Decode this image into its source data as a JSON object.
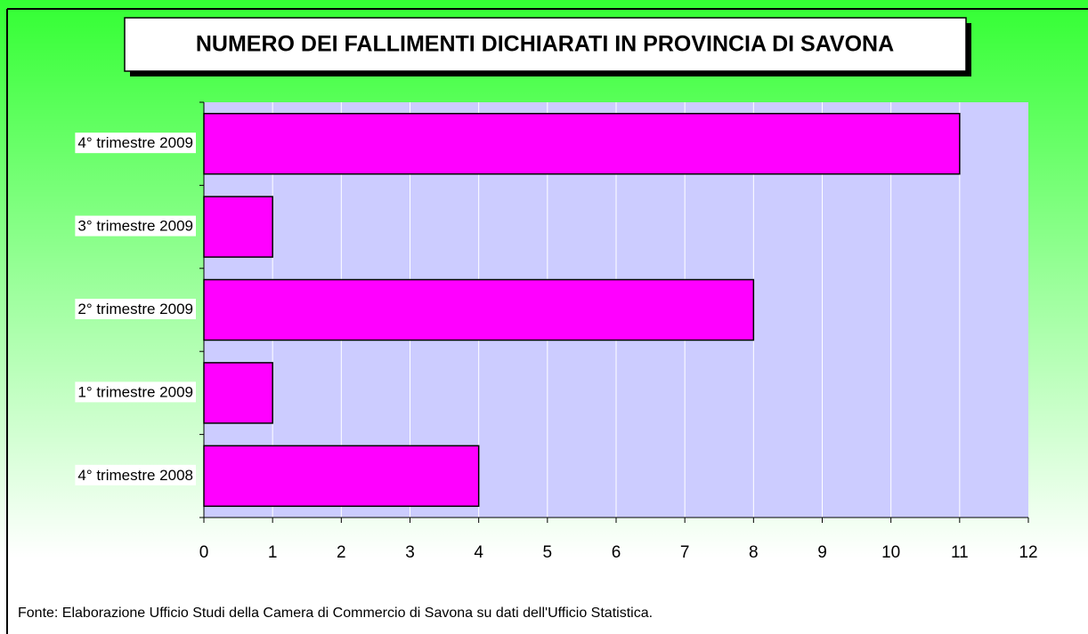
{
  "chart_data": {
    "type": "bar",
    "orientation": "horizontal",
    "title": "NUMERO DEI FALLIMENTI DICHIARATI IN PROVINCIA DI SAVONA",
    "categories": [
      "4° trimestre 2008",
      "1° trimestre 2009",
      "2° trimestre 2009",
      "3° trimestre 2009",
      "4° trimestre 2009"
    ],
    "values": [
      4,
      1,
      8,
      1,
      11
    ],
    "color": "#ff00ff",
    "xlim": [
      0,
      12
    ],
    "xticks": [
      0,
      1,
      2,
      3,
      4,
      5,
      6,
      7,
      8,
      9,
      10,
      11,
      12
    ],
    "grid": true,
    "note": "Fonte: Elaborazione Ufficio Studi della Camera di Commercio di Savona su dati dell'Ufficio Statistica."
  }
}
